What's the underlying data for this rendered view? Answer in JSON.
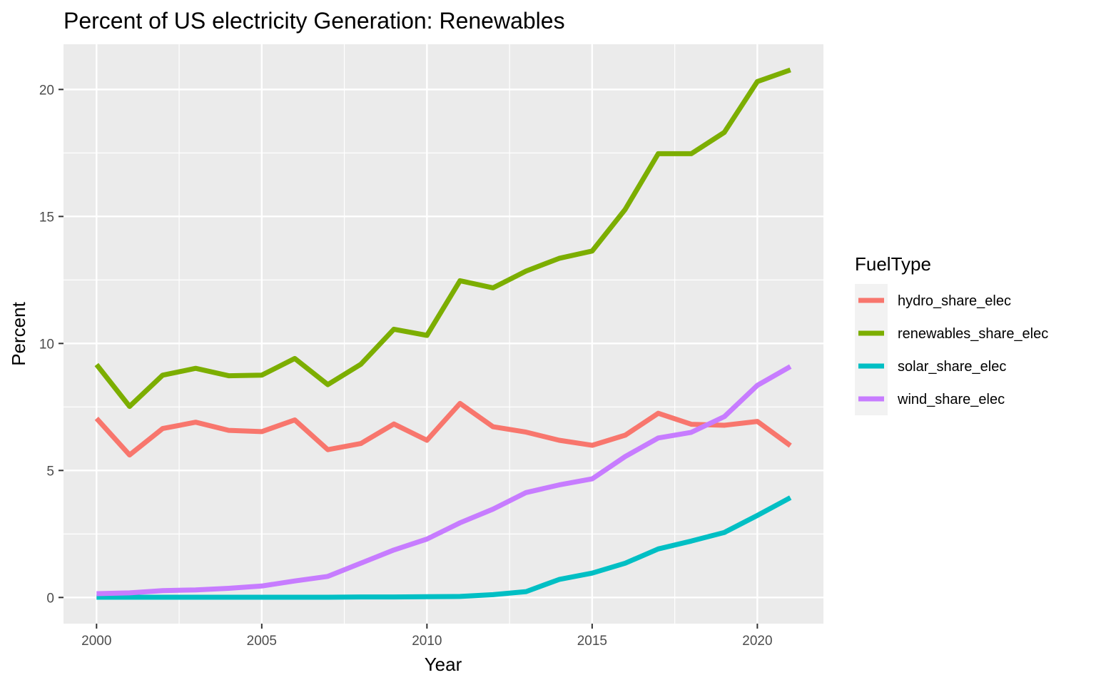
{
  "chart_data": {
    "type": "line",
    "title": "Percent of US electricity Generation: Renewables",
    "xlabel": "Year",
    "ylabel": "Percent",
    "xlim": [
      1999,
      2022
    ],
    "ylim": [
      -1.03,
      21.78
    ],
    "x_ticks": [
      2000,
      2005,
      2010,
      2015,
      2020
    ],
    "x_tick_labels": [
      "2000",
      "2005",
      "2010",
      "2015",
      "2020"
    ],
    "y_ticks": [
      0,
      5,
      10,
      15,
      20
    ],
    "y_tick_labels": [
      "0",
      "5",
      "10",
      "15",
      "20"
    ],
    "grid": true,
    "legend_position": "right",
    "legend_title": "FuelType",
    "x": [
      2000,
      2001,
      2002,
      2003,
      2004,
      2005,
      2006,
      2007,
      2008,
      2009,
      2010,
      2011,
      2012,
      2013,
      2014,
      2015,
      2016,
      2017,
      2018,
      2019,
      2020,
      2021
    ],
    "series": [
      {
        "name": "hydro_share_elec",
        "color": "#F8766D",
        "values": [
          7.05,
          5.61,
          6.65,
          6.9,
          6.58,
          6.53,
          6.99,
          5.82,
          6.06,
          6.83,
          6.19,
          7.64,
          6.72,
          6.51,
          6.19,
          5.99,
          6.39,
          7.25,
          6.82,
          6.78,
          6.93,
          5.98
        ]
      },
      {
        "name": "renewables_share_elec",
        "color": "#7CAE00",
        "values": [
          9.17,
          7.52,
          8.75,
          9.02,
          8.73,
          8.75,
          9.41,
          8.38,
          9.18,
          10.56,
          10.32,
          12.47,
          12.19,
          12.85,
          13.35,
          13.64,
          15.28,
          17.47,
          17.47,
          18.31,
          20.31,
          20.77
        ]
      },
      {
        "name": "solar_share_elec",
        "color": "#00BFC4",
        "values": [
          0.01,
          0.01,
          0.01,
          0.01,
          0.01,
          0.01,
          0.01,
          0.01,
          0.02,
          0.02,
          0.03,
          0.04,
          0.11,
          0.23,
          0.71,
          0.96,
          1.35,
          1.91,
          2.22,
          2.56,
          3.23,
          3.93
        ]
      },
      {
        "name": "wind_share_elec",
        "color": "#C77CFF",
        "values": [
          0.15,
          0.18,
          0.27,
          0.3,
          0.36,
          0.45,
          0.65,
          0.83,
          1.35,
          1.87,
          2.3,
          2.94,
          3.48,
          4.13,
          4.43,
          4.67,
          5.55,
          6.28,
          6.5,
          7.12,
          8.35,
          9.09
        ]
      }
    ]
  }
}
